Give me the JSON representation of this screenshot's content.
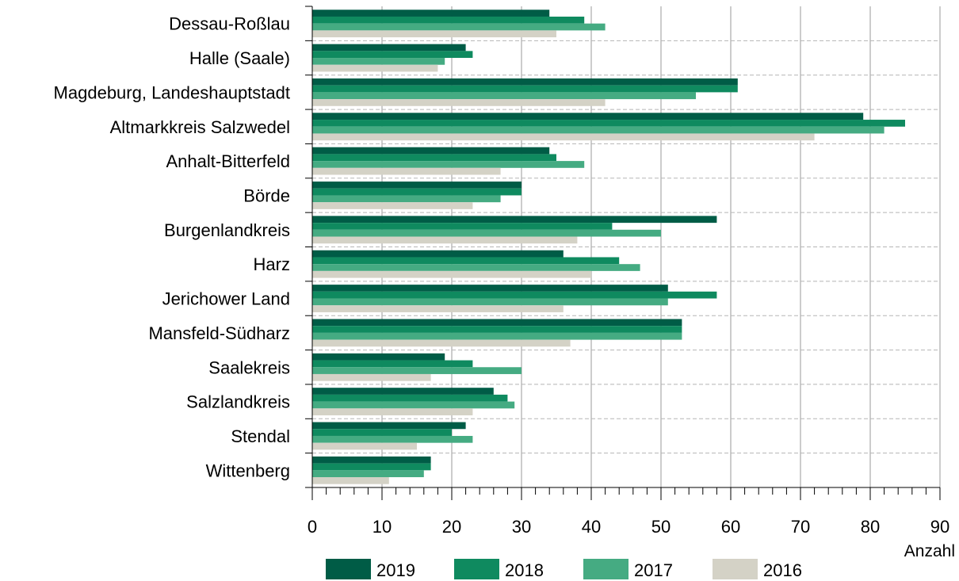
{
  "chart_data": {
    "type": "bar",
    "orientation": "horizontal",
    "title": "",
    "xlabel": "Anzahl",
    "ylabel": "",
    "xlim": [
      0,
      90
    ],
    "x_ticks": [
      "0",
      "10",
      "20",
      "30",
      "40",
      "50",
      "60",
      "70",
      "80",
      "90"
    ],
    "grid": "vertical major lines solid, dashed lines between categories",
    "legend_position": "bottom",
    "categories": [
      "Dessau-Roßlau",
      "Halle (Saale)",
      "Magdeburg, Landeshauptstadt",
      "Altmarkkreis Salzwedel",
      "Anhalt-Bitterfeld",
      "Börde",
      "Burgenlandkreis",
      "Harz",
      "Jerichower Land",
      "Mansfeld-Südharz",
      "Saalekreis",
      "Salzlandkreis",
      "Stendal",
      "Wittenberg"
    ],
    "series": [
      {
        "name": "2019",
        "color": "#005c46",
        "values": [
          34,
          22,
          61,
          79,
          34,
          30,
          58,
          36,
          51,
          53,
          19,
          26,
          22,
          17
        ]
      },
      {
        "name": "2018",
        "color": "#0f8a5f",
        "values": [
          39,
          23,
          61,
          85,
          35,
          30,
          43,
          44,
          58,
          53,
          23,
          28,
          20,
          17
        ]
      },
      {
        "name": "2017",
        "color": "#45ab82",
        "values": [
          42,
          19,
          55,
          82,
          39,
          27,
          50,
          47,
          51,
          53,
          30,
          29,
          23,
          16
        ]
      },
      {
        "name": "2016",
        "color": "#d4d2c6",
        "values": [
          35,
          18,
          42,
          72,
          27,
          23,
          38,
          40,
          36,
          37,
          17,
          23,
          15,
          11
        ]
      }
    ]
  }
}
